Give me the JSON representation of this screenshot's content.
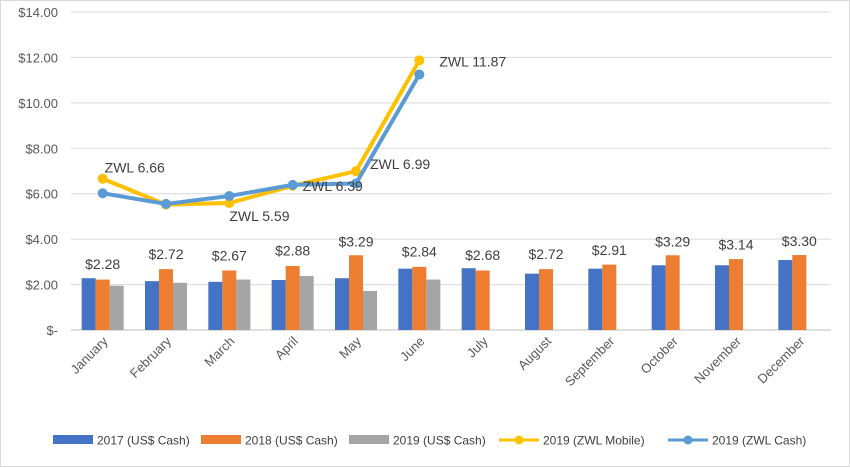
{
  "chart_data": {
    "type": "bar",
    "title": "",
    "xlabel": "",
    "ylabel": "",
    "ylim": [
      0,
      14
    ],
    "y_ticks": [
      "$-",
      "$2.00",
      "$4.00",
      "$6.00",
      "$8.00",
      "$10.00",
      "$12.00",
      "$14.00"
    ],
    "grid": true,
    "legend_position": "bottom",
    "categories": [
      "January",
      "February",
      "March",
      "April",
      "May",
      "June",
      "July",
      "August",
      "September",
      "October",
      "November",
      "December"
    ],
    "series": [
      {
        "name": "2017 (US$ Cash)",
        "type": "bar",
        "color": "#4472C4",
        "values": [
          2.28,
          2.15,
          2.12,
          2.2,
          2.28,
          2.7,
          2.72,
          2.48,
          2.7,
          2.85,
          2.85,
          3.08
        ]
      },
      {
        "name": "2018 (US$ Cash)",
        "type": "bar",
        "color": "#ED7D31",
        "values": [
          2.22,
          2.68,
          2.62,
          2.82,
          3.29,
          2.78,
          2.62,
          2.68,
          2.88,
          3.29,
          3.12,
          3.3
        ]
      },
      {
        "name": "2019 (US$ Cash)",
        "type": "bar",
        "color": "#A5A5A5",
        "values": [
          1.95,
          2.08,
          2.22,
          2.38,
          1.72,
          2.22,
          null,
          null,
          null,
          null,
          null,
          null
        ]
      },
      {
        "name": "2019 (ZWL Mobile)",
        "type": "line",
        "color": "#FFC000",
        "values": [
          6.66,
          5.52,
          5.59,
          6.35,
          6.99,
          11.87,
          null,
          null,
          null,
          null,
          null,
          null
        ]
      },
      {
        "name": "2019 (ZWL Cash)",
        "type": "line",
        "color": "#5B9BD5",
        "values": [
          6.02,
          5.55,
          5.9,
          6.39,
          6.45,
          11.25,
          null,
          null,
          null,
          null,
          null,
          null
        ]
      }
    ],
    "bar_labels": [
      "$2.28",
      "$2.72",
      "$2.67",
      "$2.88",
      "$3.29",
      "$2.84",
      "$2.68",
      "$2.72",
      "$2.91",
      "$3.29",
      "$3.14",
      "$3.30"
    ],
    "bar_label_values": [
      2.28,
      2.72,
      2.67,
      2.88,
      3.29,
      2.84,
      2.68,
      2.72,
      2.91,
      3.29,
      3.14,
      3.3
    ],
    "line_labels": [
      {
        "text": "ZWL 6.66",
        "month": "January",
        "value": 6.66
      },
      {
        "text": "ZWL 5.59",
        "month": "March",
        "value": 5.59
      },
      {
        "text": "ZWL 6.39",
        "month": "April",
        "value": 6.39
      },
      {
        "text": "ZWL 6.99",
        "month": "May",
        "value": 6.99
      },
      {
        "text": "ZWL 11.87",
        "month": "June",
        "value": 11.87
      }
    ]
  }
}
